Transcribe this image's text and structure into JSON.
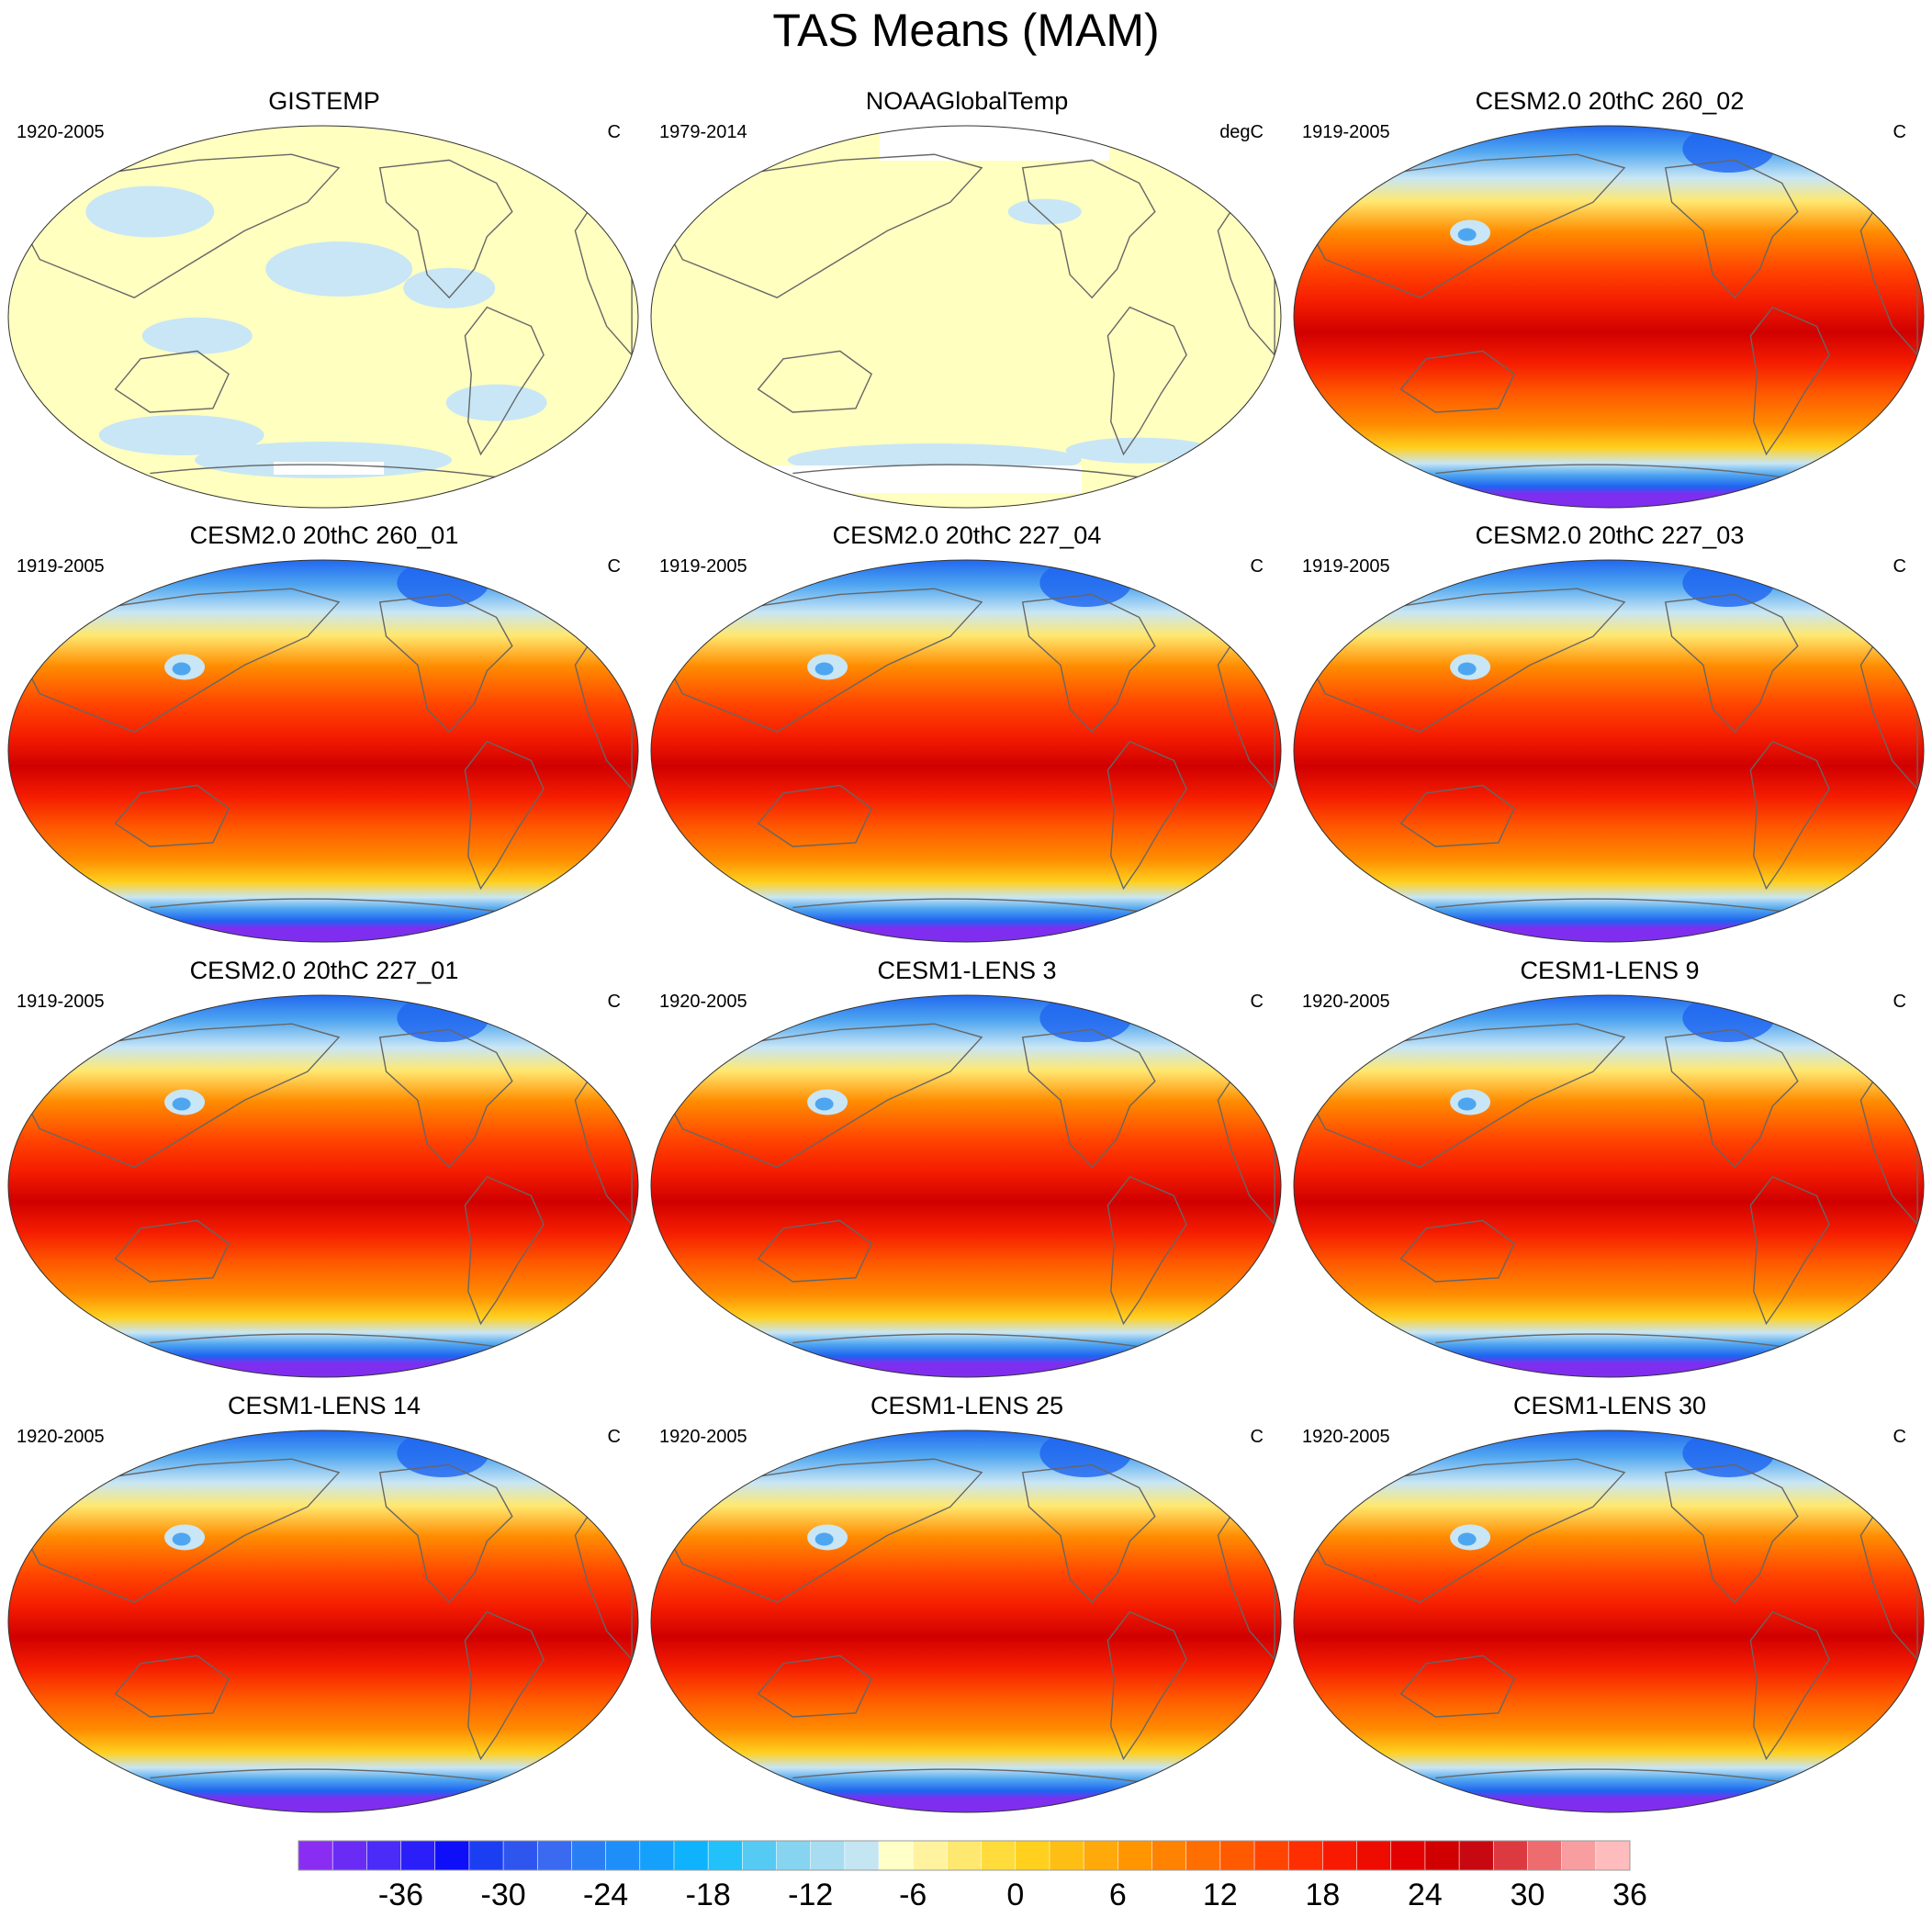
{
  "title": "TAS Means (MAM)",
  "colors": {
    "cold": "#7f2ef0",
    "ice": "#1e64f0",
    "cool": "#4fa6f0",
    "light_blue": "#c8e6f5",
    "light_yellow": "#ffffc0",
    "orange": "#ff8c00",
    "red": "#f51d00",
    "dark_red": "#d00000",
    "coast": "#666666"
  },
  "panels": [
    {
      "title": "GISTEMP",
      "period": "1920-2005",
      "units": "C",
      "style": "obs"
    },
    {
      "title": "NOAAGlobalTemp",
      "period": "1979-2014",
      "units": "degC",
      "style": "obs2"
    },
    {
      "title": "CESM2.0 20thC 260_02",
      "period": "1919-2005",
      "units": "C",
      "style": "model"
    },
    {
      "title": "CESM2.0 20thC 260_01",
      "period": "1919-2005",
      "units": "C",
      "style": "model"
    },
    {
      "title": "CESM2.0 20thC 227_04",
      "period": "1919-2005",
      "units": "C",
      "style": "model"
    },
    {
      "title": "CESM2.0 20thC 227_03",
      "period": "1919-2005",
      "units": "C",
      "style": "model"
    },
    {
      "title": "CESM2.0 20thC 227_01",
      "period": "1919-2005",
      "units": "C",
      "style": "model"
    },
    {
      "title": "CESM1-LENS 3",
      "period": "1920-2005",
      "units": "C",
      "style": "model"
    },
    {
      "title": "CESM1-LENS 9",
      "period": "1920-2005",
      "units": "C",
      "style": "model"
    },
    {
      "title": "CESM1-LENS 14",
      "period": "1920-2005",
      "units": "C",
      "style": "model"
    },
    {
      "title": "CESM1-LENS 25",
      "period": "1920-2005",
      "units": "C",
      "style": "model"
    },
    {
      "title": "CESM1-LENS 30",
      "period": "1920-2005",
      "units": "C",
      "style": "model"
    }
  ],
  "colorbar": {
    "colors": [
      "#8a2df2",
      "#6a2cf5",
      "#4b2bf7",
      "#2a1ff8",
      "#0e0ef8",
      "#1c3ef2",
      "#2e55ee",
      "#3a6af0",
      "#2a7ef4",
      "#1e8ff8",
      "#14a0fb",
      "#0eb2fd",
      "#22c1fa",
      "#55cbf4",
      "#86d4f0",
      "#a8dcf0",
      "#c4e6f2",
      "#ffffc8",
      "#fff3a0",
      "#ffe870",
      "#ffdc3c",
      "#ffd01e",
      "#ffbe14",
      "#ffaa0a",
      "#ff9600",
      "#ff8200",
      "#ff6e00",
      "#ff5a00",
      "#ff4400",
      "#ff2e00",
      "#f81a00",
      "#ee0c00",
      "#e20000",
      "#d00000",
      "#c80810",
      "#dc3a40",
      "#ec6c70",
      "#f89ea0",
      "#ffbcbc"
    ],
    "tick_labels": [
      "-36",
      "-30",
      "-24",
      "-18",
      "-12",
      "-6",
      "0",
      "6",
      "12",
      "18",
      "24",
      "30",
      "36"
    ]
  }
}
